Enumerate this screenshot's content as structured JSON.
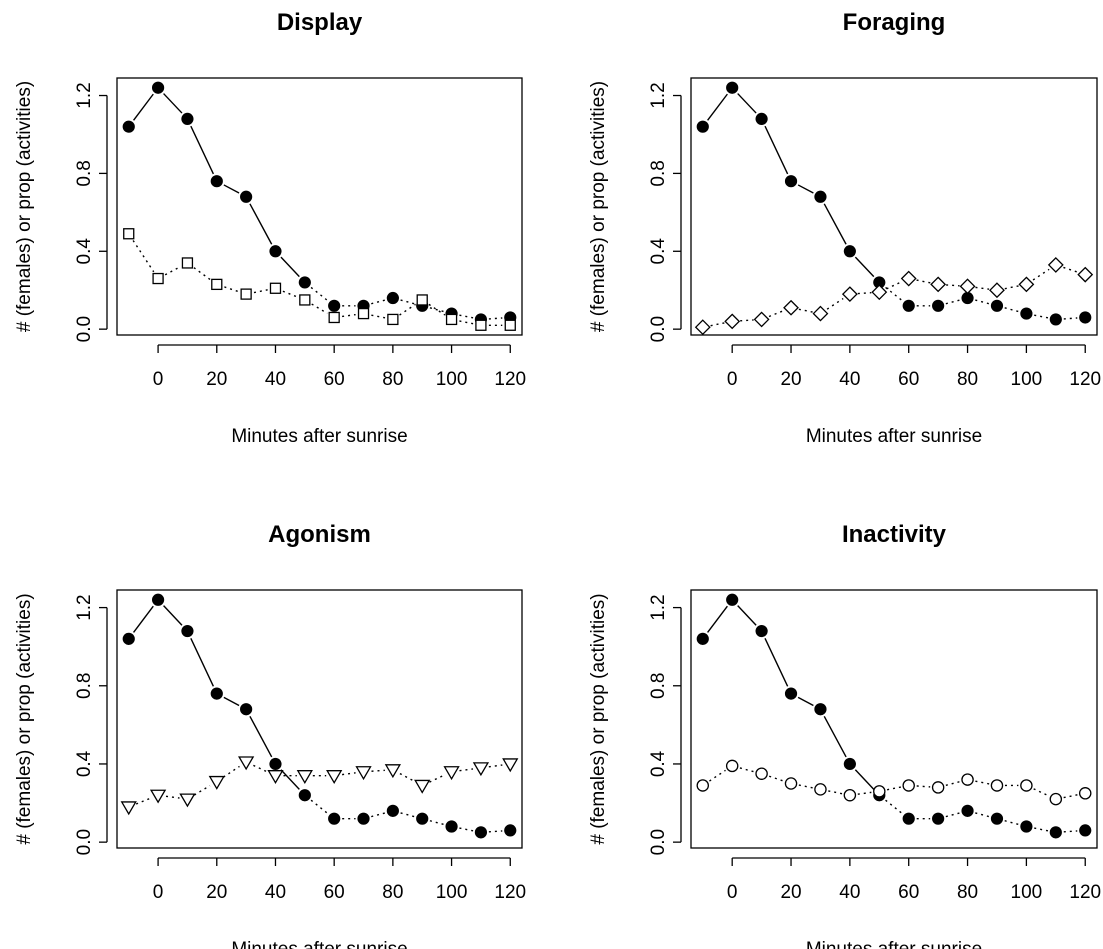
{
  "chart_data": [
    {
      "type": "line",
      "title": "Display",
      "xlabel": "Minutes after sunrise",
      "ylabel": "# (females) or prop (activities)",
      "x": [
        -10,
        0,
        10,
        20,
        30,
        40,
        50,
        60,
        70,
        80,
        90,
        100,
        110,
        120
      ],
      "xlim": [
        -14,
        124
      ],
      "ylim": [
        -0.03,
        1.29
      ],
      "xticks": [
        0,
        20,
        40,
        60,
        80,
        100,
        120
      ],
      "yticks": [
        0.0,
        0.4,
        0.8,
        1.2
      ],
      "xtick_labels": [
        "0",
        "20",
        "40",
        "60",
        "80",
        "100",
        "120"
      ],
      "ytick_labels": [
        "0.0",
        "0.4",
        "0.8",
        "1.2"
      ],
      "series": [
        {
          "marker": "filled-circle",
          "line": "solid-then-dotted",
          "values": [
            1.04,
            1.24,
            1.08,
            0.76,
            0.68,
            0.4,
            0.24,
            0.12,
            0.12,
            0.16,
            0.12,
            0.08,
            0.05,
            0.06
          ]
        },
        {
          "marker": "open-square",
          "line": "dotted",
          "values": [
            0.49,
            0.26,
            0.34,
            0.23,
            0.18,
            0.21,
            0.15,
            0.06,
            0.08,
            0.05,
            0.15,
            0.05,
            0.02,
            0.02
          ]
        }
      ]
    },
    {
      "type": "line",
      "title": "Foraging",
      "xlabel": "Minutes after sunrise",
      "ylabel": "# (females) or prop (activities)",
      "x": [
        -10,
        0,
        10,
        20,
        30,
        40,
        50,
        60,
        70,
        80,
        90,
        100,
        110,
        120
      ],
      "xlim": [
        -14,
        124
      ],
      "ylim": [
        -0.03,
        1.29
      ],
      "xticks": [
        0,
        20,
        40,
        60,
        80,
        100,
        120
      ],
      "yticks": [
        0.0,
        0.4,
        0.8,
        1.2
      ],
      "xtick_labels": [
        "0",
        "20",
        "40",
        "60",
        "80",
        "100",
        "120"
      ],
      "ytick_labels": [
        "0.0",
        "0.4",
        "0.8",
        "1.2"
      ],
      "series": [
        {
          "marker": "filled-circle",
          "line": "solid-then-dotted",
          "values": [
            1.04,
            1.24,
            1.08,
            0.76,
            0.68,
            0.4,
            0.24,
            0.12,
            0.12,
            0.16,
            0.12,
            0.08,
            0.05,
            0.06
          ]
        },
        {
          "marker": "open-diamond",
          "line": "dotted",
          "values": [
            0.01,
            0.04,
            0.05,
            0.11,
            0.08,
            0.18,
            0.19,
            0.26,
            0.23,
            0.22,
            0.2,
            0.23,
            0.33,
            0.28
          ]
        }
      ]
    },
    {
      "type": "line",
      "title": "Agonism",
      "xlabel": "Minutes after sunrise",
      "ylabel": "# (females) or prop (activities)",
      "x": [
        -10,
        0,
        10,
        20,
        30,
        40,
        50,
        60,
        70,
        80,
        90,
        100,
        110,
        120
      ],
      "xlim": [
        -14,
        124
      ],
      "ylim": [
        -0.03,
        1.29
      ],
      "xticks": [
        0,
        20,
        40,
        60,
        80,
        100,
        120
      ],
      "yticks": [
        0.0,
        0.4,
        0.8,
        1.2
      ],
      "xtick_labels": [
        "0",
        "20",
        "40",
        "60",
        "80",
        "100",
        "120"
      ],
      "ytick_labels": [
        "0.0",
        "0.4",
        "0.8",
        "1.2"
      ],
      "series": [
        {
          "marker": "filled-circle",
          "line": "solid-then-dotted",
          "values": [
            1.04,
            1.24,
            1.08,
            0.76,
            0.68,
            0.4,
            0.24,
            0.12,
            0.12,
            0.16,
            0.12,
            0.08,
            0.05,
            0.06
          ]
        },
        {
          "marker": "open-triangle-down",
          "line": "dotted",
          "values": [
            0.18,
            0.24,
            0.22,
            0.31,
            0.41,
            0.34,
            0.34,
            0.34,
            0.36,
            0.37,
            0.29,
            0.36,
            0.38,
            0.4
          ]
        }
      ]
    },
    {
      "type": "line",
      "title": "Inactivity",
      "xlabel": "Minutes after sunrise",
      "ylabel": "# (females) or prop (activities)",
      "x": [
        -10,
        0,
        10,
        20,
        30,
        40,
        50,
        60,
        70,
        80,
        90,
        100,
        110,
        120
      ],
      "xlim": [
        -14,
        124
      ],
      "ylim": [
        -0.03,
        1.29
      ],
      "xticks": [
        0,
        20,
        40,
        60,
        80,
        100,
        120
      ],
      "yticks": [
        0.0,
        0.4,
        0.8,
        1.2
      ],
      "xtick_labels": [
        "0",
        "20",
        "40",
        "60",
        "80",
        "100",
        "120"
      ],
      "ytick_labels": [
        "0.0",
        "0.4",
        "0.8",
        "1.2"
      ],
      "series": [
        {
          "marker": "filled-circle",
          "line": "solid-then-dotted",
          "values": [
            1.04,
            1.24,
            1.08,
            0.76,
            0.68,
            0.4,
            0.24,
            0.12,
            0.12,
            0.16,
            0.12,
            0.08,
            0.05,
            0.06
          ]
        },
        {
          "marker": "open-circle",
          "line": "dotted",
          "values": [
            0.29,
            0.39,
            0.35,
            0.3,
            0.27,
            0.24,
            0.26,
            0.29,
            0.28,
            0.32,
            0.29,
            0.29,
            0.22,
            0.25
          ]
        }
      ]
    }
  ]
}
